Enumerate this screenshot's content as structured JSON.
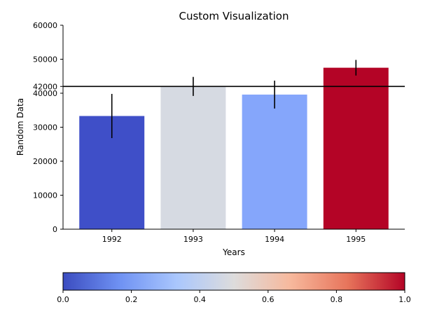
{
  "chart_data": {
    "type": "bar",
    "title": "Custom Visualization",
    "xlabel": "Years",
    "ylabel": "Random Data",
    "categories": [
      "1992",
      "1993",
      "1994",
      "1995"
    ],
    "values": [
      33300,
      42000,
      39600,
      47500
    ],
    "errors": [
      6500,
      2800,
      4100,
      2300
    ],
    "bar_colors": [
      "#3f4fc8",
      "#d6dae2",
      "#85a6fb",
      "#b40426"
    ],
    "ylim": [
      0,
      60000
    ],
    "yticks": [
      "0",
      "10000",
      "20000",
      "30000",
      "40000",
      "50000",
      "60000"
    ],
    "reference_line": {
      "value": 42000,
      "label": "42000",
      "color": "#000000"
    },
    "colorbar": {
      "colormap": "coolwarm",
      "range": [
        0.0,
        1.0
      ],
      "ticks": [
        "0.0",
        "0.2",
        "0.4",
        "0.6",
        "0.8",
        "1.0"
      ],
      "gradient_colors": [
        "#3b4cc0",
        "#6f92f3",
        "#aac7fd",
        "#dddcdc",
        "#f7b89c",
        "#e7745b",
        "#b40426"
      ]
    },
    "grid": false
  }
}
